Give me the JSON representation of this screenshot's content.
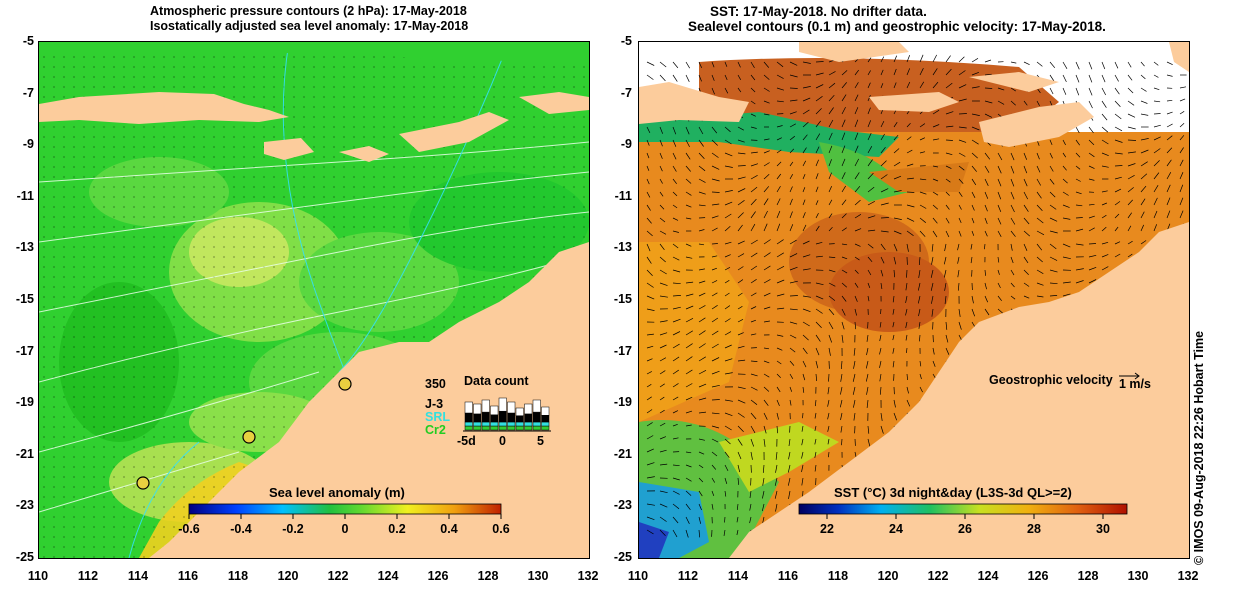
{
  "left_panel": {
    "title_line1": "Atmospheric pressure contours (2 hPa): 17-May-2018",
    "title_line2": "Isostatically adjusted sea level anomaly: 17-May-2018",
    "colorbar_label": "Sea level anomaly (m)",
    "colorbar_ticks": [
      "-0.6",
      "-0.4",
      "-0.2",
      "0",
      "0.2",
      "0.4",
      "0.6"
    ],
    "data_count": {
      "title": "Data count",
      "max_label": "350",
      "series": [
        {
          "name": "J-3",
          "color": "#000000"
        },
        {
          "name": "SRL",
          "color": "#33e0e0"
        },
        {
          "name": "Cr2",
          "color": "#33cc33"
        }
      ],
      "x_ticks": [
        "-5d",
        "0",
        "5"
      ]
    }
  },
  "right_panel": {
    "title_line1": "SST: 17-May-2018. No drifter data.",
    "title_line2": "Sealevel contours (0.1 m) and geostrophic velocity: 17-May-2018.",
    "velocity_label": "Geostrophic velocity",
    "velocity_scale": "1 m/s",
    "colorbar_label": "SST (°C) 3d night&day (L3S-3d QL>=2)",
    "colorbar_ticks": [
      "22",
      "24",
      "26",
      "28",
      "30"
    ]
  },
  "axes": {
    "y_ticks": [
      "-5",
      "-7",
      "-9",
      "-11",
      "-13",
      "-15",
      "-17",
      "-19",
      "-21",
      "-23",
      "-25"
    ],
    "x_ticks": [
      "110",
      "112",
      "114",
      "116",
      "118",
      "120",
      "122",
      "124",
      "126",
      "128",
      "130",
      "132"
    ]
  },
  "stamp": "© IMOS 09-Aug-2018 22:26 Hobart Time",
  "colors": {
    "land": "#fccc9c",
    "sea_green": "#33cc33",
    "sst_orange": "#e88a1e"
  }
}
